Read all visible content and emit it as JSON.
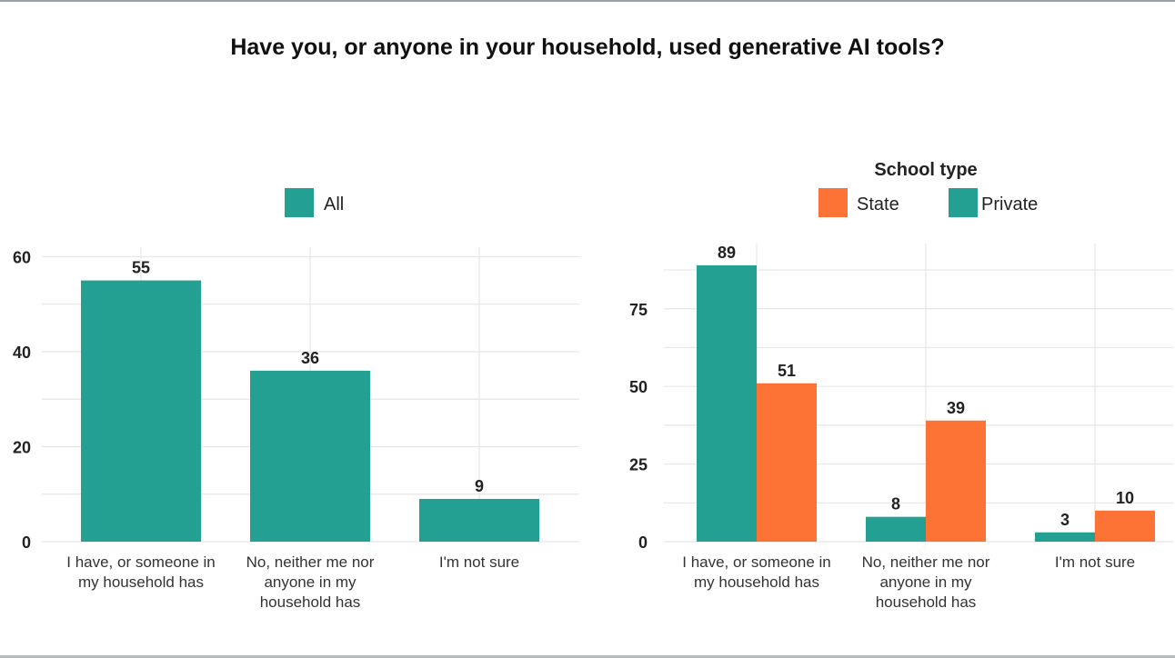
{
  "page": {
    "title": "Have you, or anyone in your household, used generative AI tools?"
  },
  "colors": {
    "teal": "#23a092",
    "orange": "#fd7235",
    "grid": "#e6e6e6",
    "text": "#222222"
  },
  "chart_data": [
    {
      "type": "bar",
      "title": "",
      "legend": {
        "title": "",
        "entries": [
          "All"
        ]
      },
      "categories": [
        [
          "I have, or someone in",
          "my household has"
        ],
        [
          "No, neither me nor",
          "anyone in my",
          "household has"
        ],
        [
          "I'm not sure"
        ]
      ],
      "series": [
        {
          "name": "All",
          "color": "#23a092",
          "values": [
            55,
            36,
            9
          ]
        }
      ],
      "yticks": [
        0,
        20,
        40,
        60
      ],
      "ylim": [
        0,
        62
      ],
      "xlabel": "",
      "ylabel": "",
      "grid": true
    },
    {
      "type": "bar",
      "title": "",
      "legend": {
        "title": "School type",
        "entries": [
          "State",
          "Private"
        ]
      },
      "categories": [
        [
          "I have, or someone in",
          "my household has"
        ],
        [
          "No, neither me nor",
          "anyone in my",
          "household has"
        ],
        [
          "I'm not sure"
        ]
      ],
      "series": [
        {
          "name": "Private",
          "color": "#23a092",
          "values": [
            89,
            8,
            3
          ]
        },
        {
          "name": "State",
          "color": "#fd7235",
          "values": [
            51,
            39,
            10
          ]
        }
      ],
      "yticks": [
        0,
        25,
        50,
        75
      ],
      "ylim": [
        0,
        96
      ],
      "xlabel": "",
      "ylabel": "",
      "grid": true
    }
  ]
}
